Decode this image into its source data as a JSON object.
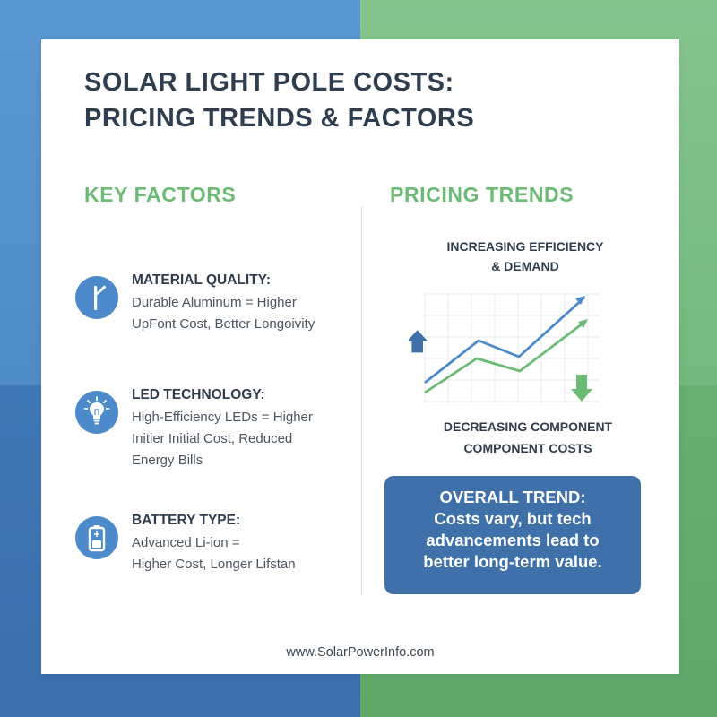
{
  "colors": {
    "blue": "#4d8acb",
    "green": "#6cbb74",
    "dark_text": "#2e3e4f",
    "box_blue": "#3f70a9"
  },
  "title": {
    "line1": "SOLAR LIGHT POLE COSTS:",
    "line2": "PRICING TRENDS & FACTORS"
  },
  "key_factors": {
    "heading": "KEY FACTORS",
    "items": [
      {
        "icon": "light-pole-icon",
        "title": "MATERIAL QUALITY:",
        "desc_lines": [
          "Durable Aluminum = Higher",
          "UpFont Cost, Better Longoivity"
        ]
      },
      {
        "icon": "lightbulb-icon",
        "title": "LED TECHNOLOGY:",
        "desc_lines": [
          "High-Efficiency LEDs = Higher",
          "Initier Initial Cost, Reduced",
          "Energy Bills"
        ]
      },
      {
        "icon": "battery-icon",
        "title": "BATTERY TYPE:",
        "desc_lines": [
          "Advanced Li-ion =",
          "Higher Cost, Longer Lifstan"
        ]
      }
    ]
  },
  "pricing_trends": {
    "heading": "PRICING TRENDS",
    "top_label_lines": [
      "INCREASING EFFICIENCY",
      "& DEMAND"
    ],
    "bottom_label_lines": [
      "DECREASING COMPONENT",
      "COMPONENT COSTS"
    ],
    "chart_icons": [
      "up-arrow-icon",
      "down-arrow-icon"
    ]
  },
  "overall": {
    "lines": [
      "OVERALL TREND:",
      "Costs vary, but tech",
      "advancements lead to",
      "better long-term value."
    ]
  },
  "footer": "www.SolarPowerInfo.com"
}
